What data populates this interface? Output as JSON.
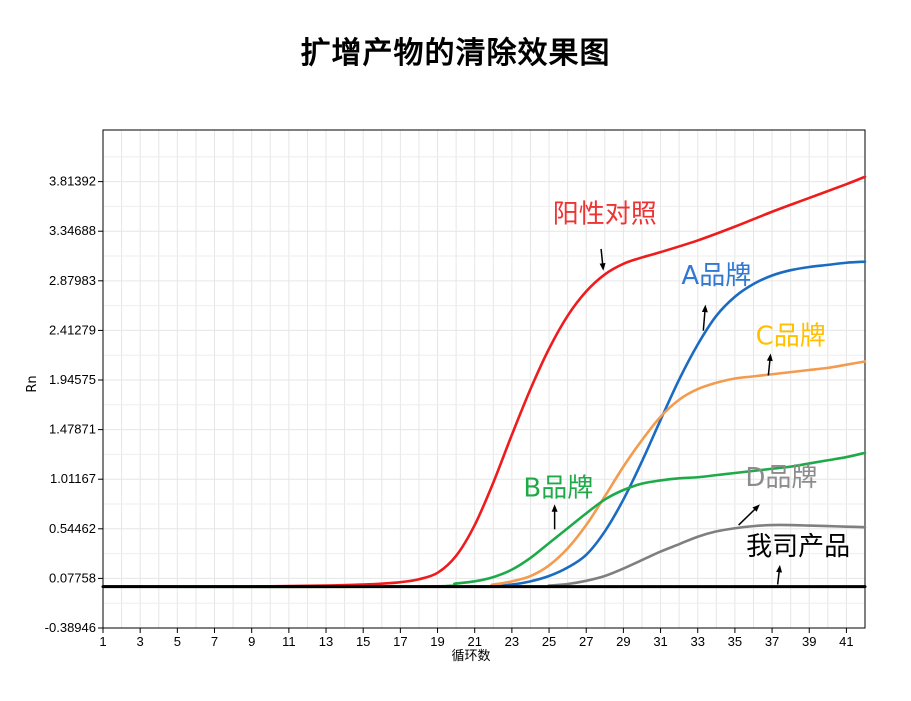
{
  "title": "扩增产物的清除效果图",
  "chart_data": {
    "type": "line",
    "title": "扩增产物的清除效果图",
    "xlabel": "循环数",
    "ylabel": "Rn",
    "xlim": [
      1,
      42
    ],
    "ylim": [
      -0.38946,
      4.3
    ],
    "x_ticks": [
      1,
      3,
      5,
      7,
      9,
      11,
      13,
      15,
      17,
      19,
      21,
      23,
      25,
      27,
      29,
      31,
      33,
      35,
      37,
      39,
      41
    ],
    "y_ticks": [
      -0.38946,
      0.07758,
      0.54462,
      1.01167,
      1.47871,
      1.94575,
      2.41279,
      2.87983,
      3.34688,
      3.81392
    ],
    "y_tick_labels": [
      "-0.38946",
      "0.07758",
      "0.54462",
      "1.01167",
      "1.47871",
      "1.94575",
      "2.41279",
      "2.87983",
      "3.34688",
      "3.81392"
    ],
    "grid": true,
    "series": [
      {
        "name": "阳性对照",
        "color": "#ee1c1c",
        "label_color": "#ee3333",
        "x": [
          1,
          5,
          10,
          13,
          15,
          16,
          17,
          18,
          19,
          20,
          21,
          22,
          23,
          24,
          25,
          26,
          27,
          28,
          29,
          30,
          31,
          33,
          35,
          37,
          39,
          41,
          42
        ],
        "y": [
          0.0,
          0.0,
          0.003,
          0.01,
          0.02,
          0.028,
          0.042,
          0.07,
          0.13,
          0.29,
          0.58,
          0.98,
          1.43,
          1.86,
          2.24,
          2.55,
          2.78,
          2.94,
          3.04,
          3.1,
          3.15,
          3.26,
          3.39,
          3.53,
          3.66,
          3.79,
          3.86
        ],
        "label_x": 28,
        "label_y": 3.43,
        "arrow_from": [
          27.8,
          3.18
        ],
        "arrow_to": [
          27.9,
          3.01
        ]
      },
      {
        "name": "A品牌",
        "color": "#1a6bc2",
        "label_color": "#2f78d4",
        "x": [
          1,
          20,
          22,
          23,
          24,
          25,
          26,
          27,
          28,
          29,
          30,
          31,
          32,
          33,
          34,
          35,
          36,
          37,
          38,
          39,
          40,
          41,
          42
        ],
        "y": [
          0.0,
          0.0,
          0.005,
          0.02,
          0.05,
          0.1,
          0.18,
          0.3,
          0.52,
          0.82,
          1.18,
          1.57,
          1.95,
          2.28,
          2.55,
          2.73,
          2.85,
          2.93,
          2.98,
          3.01,
          3.03,
          3.05,
          3.06
        ],
        "label_x": 34,
        "label_y": 2.85,
        "arrow_from": [
          33.3,
          2.41
        ],
        "arrow_to": [
          33.4,
          2.62
        ]
      },
      {
        "name": "C品牌",
        "color": "#f39b4e",
        "label_color": "#ffc000",
        "x": [
          1,
          20,
          22,
          23,
          24,
          25,
          26,
          27,
          28,
          29,
          30,
          31,
          32,
          33,
          34,
          35,
          36,
          37,
          38,
          39,
          40,
          41,
          42
        ],
        "y": [
          0.0,
          0.0,
          0.02,
          0.05,
          0.1,
          0.2,
          0.36,
          0.58,
          0.85,
          1.13,
          1.38,
          1.6,
          1.76,
          1.86,
          1.92,
          1.96,
          1.98,
          2.0,
          2.02,
          2.04,
          2.06,
          2.09,
          2.12
        ],
        "label_x": 38,
        "label_y": 2.28,
        "arrow_from": [
          36.8,
          1.99
        ],
        "arrow_to": [
          36.9,
          2.16
        ]
      },
      {
        "name": "B品牌",
        "color": "#1faa4a",
        "label_color": "#1faa4a",
        "x": [
          1,
          18,
          20,
          21,
          22,
          23,
          24,
          25,
          26,
          27,
          28,
          29,
          30,
          31,
          32,
          33,
          34,
          35,
          36,
          37,
          38,
          39,
          40,
          41,
          42
        ],
        "y": [
          0.0,
          0.0,
          0.03,
          0.05,
          0.09,
          0.16,
          0.27,
          0.41,
          0.55,
          0.69,
          0.82,
          0.91,
          0.97,
          1.0,
          1.02,
          1.03,
          1.05,
          1.07,
          1.09,
          1.11,
          1.13,
          1.16,
          1.19,
          1.22,
          1.26
        ],
        "label_x": 25.5,
        "label_y": 0.85,
        "arrow_from": [
          25.3,
          0.54
        ],
        "arrow_to": [
          25.3,
          0.74
        ]
      },
      {
        "name": "D品牌",
        "color": "#7f7f7f",
        "label_color": "#8c8c8c",
        "x": [
          1,
          24,
          25,
          26,
          27,
          28,
          29,
          30,
          31,
          32,
          33,
          34,
          35,
          36,
          37,
          38,
          39,
          40,
          41,
          42
        ],
        "y": [
          0.0,
          0.0,
          0.01,
          0.025,
          0.055,
          0.1,
          0.17,
          0.25,
          0.33,
          0.4,
          0.47,
          0.52,
          0.55,
          0.57,
          0.58,
          0.58,
          0.575,
          0.57,
          0.565,
          0.56
        ],
        "label_x": 37.5,
        "label_y": 0.95,
        "arrow_from": [
          35.2,
          0.58
        ],
        "arrow_to": [
          36.2,
          0.75
        ]
      },
      {
        "name": "我司产品",
        "color": "#000000",
        "label_color": "#000000",
        "x": [
          1,
          42
        ],
        "y": [
          0.0,
          0.0
        ],
        "label_x": 38.4,
        "label_y": 0.3,
        "arrow_from": [
          37.3,
          0.02
        ],
        "arrow_to": [
          37.4,
          0.17
        ]
      }
    ]
  }
}
